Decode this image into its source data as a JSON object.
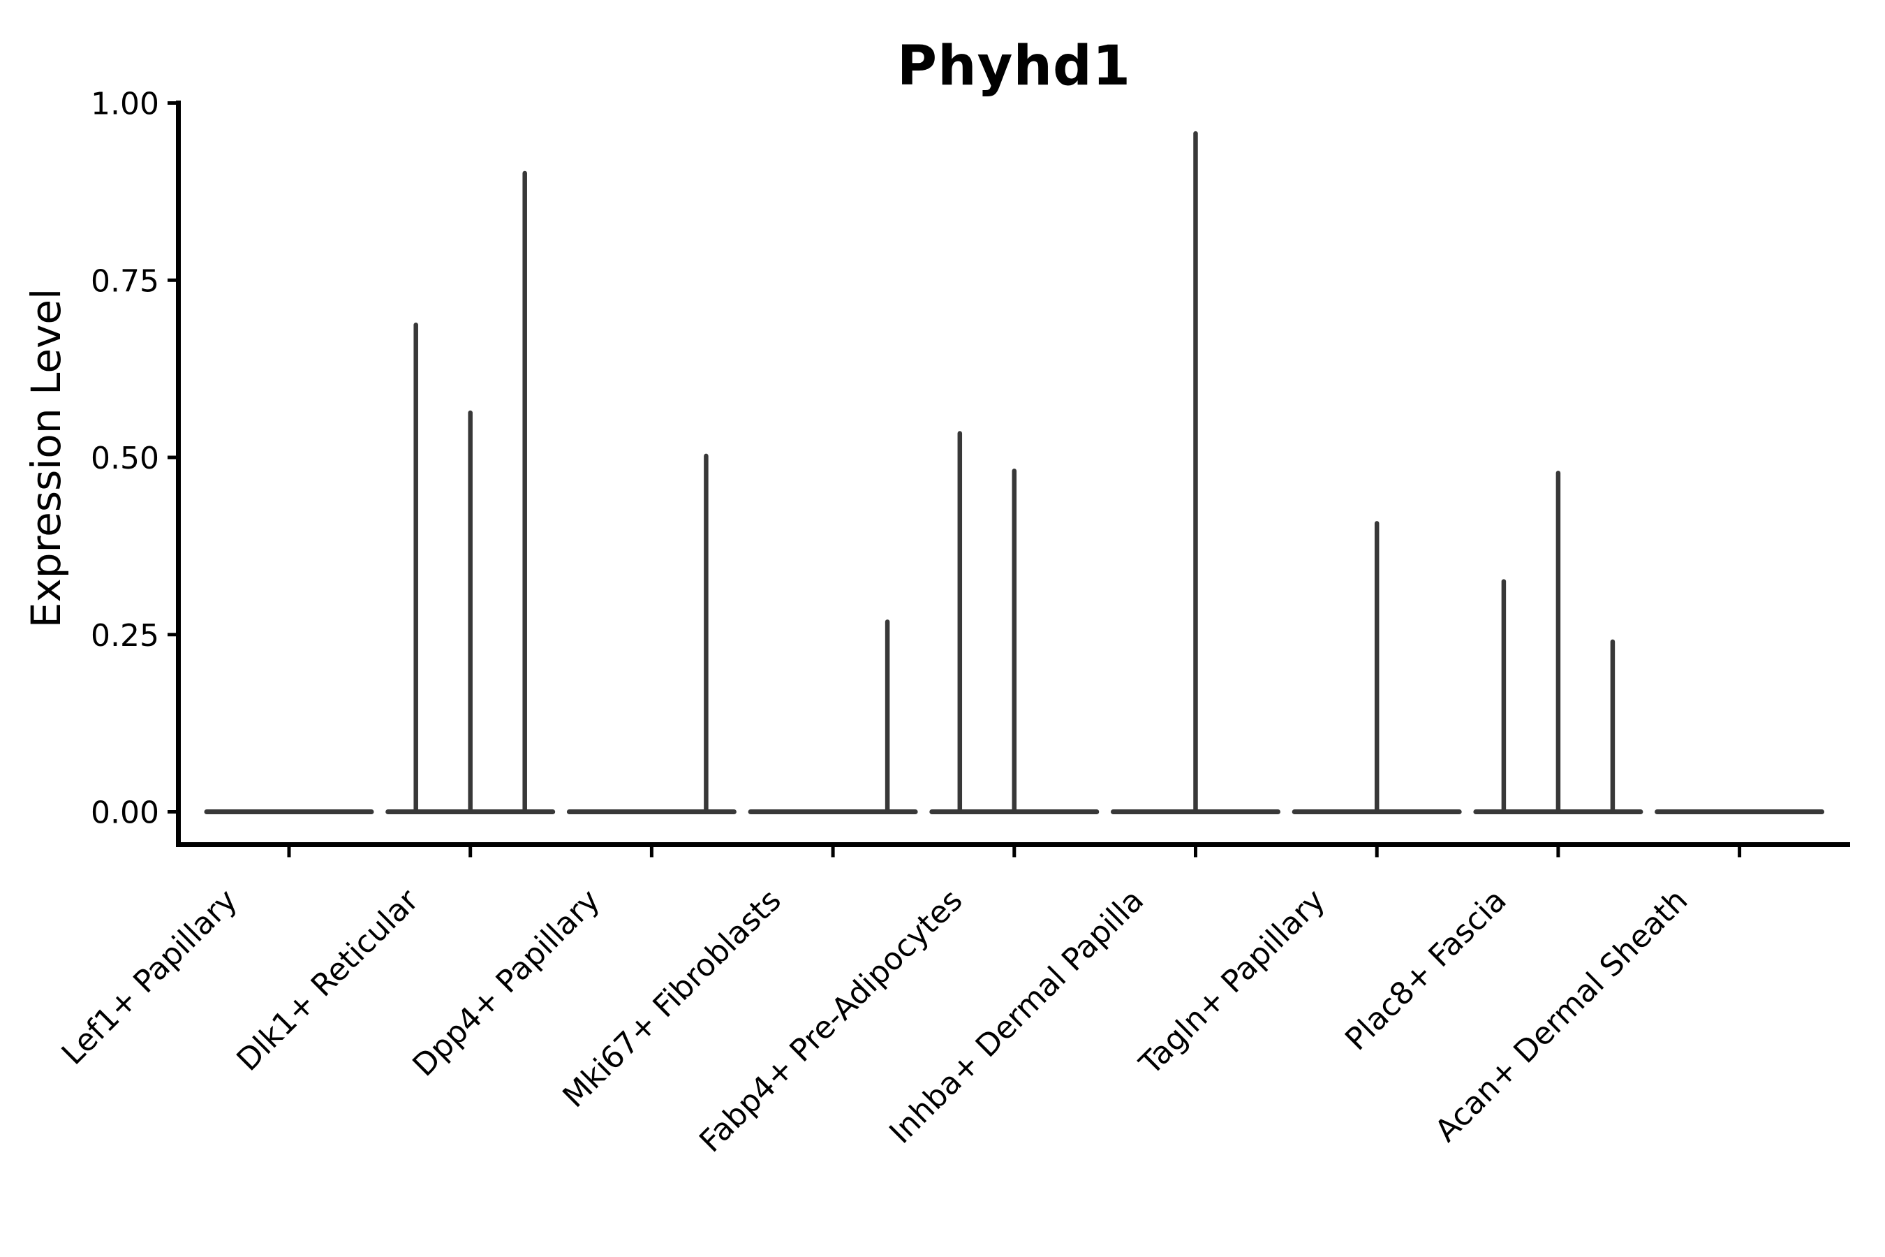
{
  "chart_data": {
    "type": "violin",
    "title": "Phyhd1",
    "ylabel": "Expression Level",
    "xlabel": "",
    "ylim": [
      0.0,
      1.0
    ],
    "grid": false,
    "legend": "none",
    "ytick_labels": [
      "0.00",
      "0.25",
      "0.50",
      "0.75",
      "1.00"
    ],
    "ytick_values": [
      0.0,
      0.25,
      0.5,
      0.75,
      1.0
    ],
    "categories": [
      "Lef1+ Papillary",
      "Dlk1+ Reticular",
      "Dpp4+ Papillary",
      "Mki67+ Fibroblasts",
      "Fabp4+ Pre-Adipocytes",
      "Inhba+ Dermal Papilla",
      "Tagln+ Papillary",
      "Plac8+ Fascia",
      "Acan+ Dermal Sheath"
    ],
    "groups": [
      {
        "label": "Lef1+ Papillary",
        "violin_maxima": [
          0,
          0,
          0
        ]
      },
      {
        "label": "Dlk1+ Reticular",
        "violin_maxima": [
          0.69,
          0.566,
          0.904
        ]
      },
      {
        "label": "Dpp4+ Papillary",
        "violin_maxima": [
          0,
          0,
          0.505
        ]
      },
      {
        "label": "Mki67+ Fibroblasts",
        "violin_maxima": [
          0,
          0,
          0.271
        ]
      },
      {
        "label": "Fabp4+ Pre-Adipocytes",
        "violin_maxima": [
          0.537,
          0.484,
          0
        ]
      },
      {
        "label": "Inhba+ Dermal Papilla",
        "violin_maxima": [
          0,
          0.96,
          0
        ]
      },
      {
        "label": "Tagln+ Papillary",
        "violin_maxima": [
          0,
          0.41,
          0
        ]
      },
      {
        "label": "Plac8+ Fascia",
        "violin_maxima": [
          0.328,
          0.481,
          0.243
        ]
      },
      {
        "label": "Acan+ Dermal Sheath",
        "violin_maxima": [
          0,
          0,
          0
        ]
      }
    ],
    "notes": "Each category holds 3 thin violins; violins with maximum 0 collapse to a flat bar at y=0. Spikes are thin density ridges rising from the zero baseline.",
    "colors": {
      "violin_stroke": "#383838",
      "axis": "#000000",
      "text": "#000000",
      "background": "#ffffff"
    }
  }
}
